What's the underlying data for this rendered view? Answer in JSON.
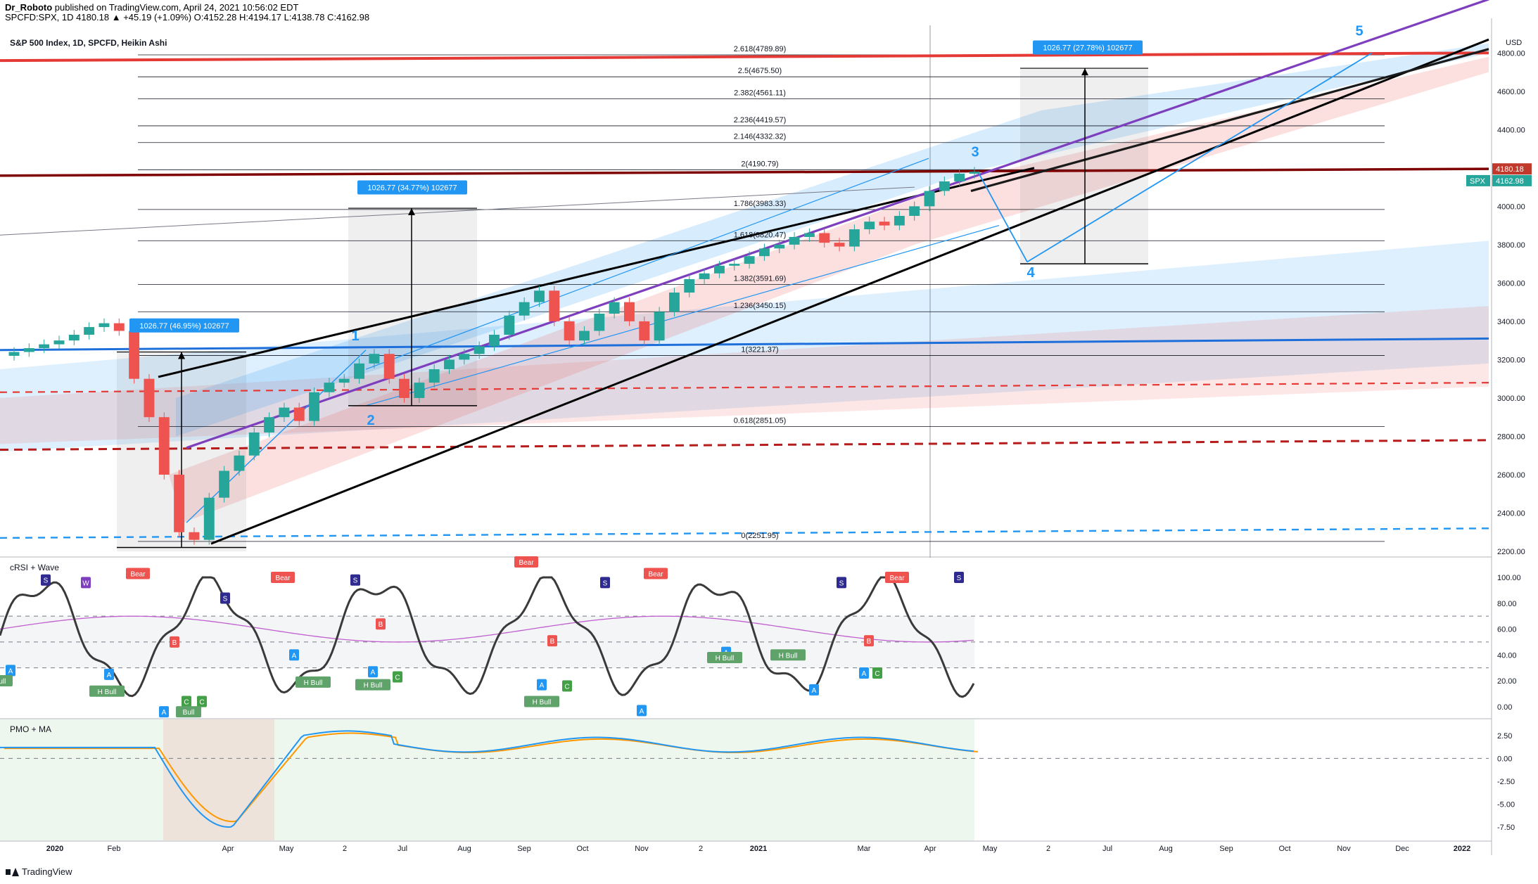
{
  "header": {
    "line1_user": "Dr_Roboto",
    "line1_rest": " published on TradingView.com, April 24, 2021 10:56:02 EDT",
    "line2": "SPCFD:SPX, 1D  4180.18  ▲ +45.19 (+1.09%)  O:4152.28  H:4194.17  L:4138.78  C:4162.98"
  },
  "footer": {
    "brand": "TradingView"
  },
  "chart_data": [
    {
      "type": "candlestick",
      "title": "S&P 500 Index, 1D, SPCFD, Heikin Ashi",
      "currency": "USD",
      "ylim": [
        2200,
        4900
      ],
      "y_ticks": [
        "4800.00",
        "4600.00",
        "4400.00",
        "4200.00",
        "4000.00",
        "3800.00",
        "3600.00",
        "3400.00",
        "3200.00",
        "3000.00",
        "2800.00",
        "2600.00",
        "2400.00",
        "2200.00"
      ],
      "x_ticks": [
        "2020",
        "Feb",
        "Apr",
        "May",
        "2",
        "Jul",
        "Aug",
        "Sep",
        "Oct",
        "Nov",
        "2",
        "2021",
        "Mar",
        "Apr",
        "May",
        "2",
        "Jul",
        "Aug",
        "Sep",
        "Oct",
        "Nov",
        "Dec",
        "2022"
      ],
      "price_labels": [
        {
          "text": "4180.18",
          "color": "#c0392b"
        },
        {
          "text": "4162.98",
          "color": "#26a69a",
          "tag": "SPX"
        }
      ],
      "series": [
        {
          "name": "S&P 500 (Heikin Ashi)",
          "color": "#26a69a",
          "values": [
            3240,
            3260,
            3280,
            3300,
            3330,
            3370,
            3390,
            3350,
            3100,
            2900,
            2600,
            2300,
            2260,
            2480,
            2620,
            2700,
            2820,
            2900,
            2950,
            2880,
            3030,
            3080,
            3100,
            3180,
            3230,
            3100,
            3000,
            3080,
            3150,
            3200,
            3230,
            3270,
            3330,
            3430,
            3500,
            3560,
            3400,
            3300,
            3350,
            3440,
            3500,
            3400,
            3300,
            3450,
            3550,
            3620,
            3650,
            3690,
            3700,
            3740,
            3780,
            3800,
            3840,
            3860,
            3810,
            3790,
            3880,
            3920,
            3900,
            3950,
            4000,
            4080,
            4130,
            4170,
            4180
          ]
        }
      ],
      "fib_levels": [
        {
          "ratio": "2.618",
          "price": 4789.89
        },
        {
          "ratio": "2.5",
          "price": 4675.5
        },
        {
          "ratio": "2.382",
          "price": 4561.11
        },
        {
          "ratio": "2.236",
          "price": 4419.57
        },
        {
          "ratio": "2.146",
          "price": 4332.32
        },
        {
          "ratio": "2",
          "price": 4190.79
        },
        {
          "ratio": "1.786",
          "price": 3983.33
        },
        {
          "ratio": "1.618",
          "price": 3820.47
        },
        {
          "ratio": "1.382",
          "price": 3591.69
        },
        {
          "ratio": "1.236",
          "price": 3450.15
        },
        {
          "ratio": "1",
          "price": 3221.37
        },
        {
          "ratio": "0.618",
          "price": 2851.05
        },
        {
          "ratio": "0",
          "price": 2251.95
        }
      ],
      "fib_label_texts": [
        "2.618(4789.89)",
        "2.5(4675.50)",
        "2.382(4561.11)",
        "2.236(4419.57)",
        "2.146(4332.32)",
        "2(4190.79)",
        "1.786(3983.33)",
        "1.618(3820.47)",
        "1.382(3591.69)",
        "1.236(3450.15)",
        "1(3221.37)",
        "0.618(2851.05)",
        "0(2251.95)"
      ],
      "measure_labels": [
        "1026.77 (46.95%) 102677",
        "1026.77 (34.77%) 102677",
        "1026.77 (27.78%) 102677"
      ],
      "wave_labels": [
        "1",
        "2",
        "3",
        "4",
        "5"
      ]
    },
    {
      "type": "line",
      "title": "cRSI + Wave",
      "ylim": [
        -5,
        112
      ],
      "y_ticks": [
        "100.00",
        "80.00",
        "60.00",
        "40.00",
        "20.00",
        "0.00"
      ],
      "signal_labels": {
        "bear": "Bear",
        "bull": "Bull",
        "hbull": "H Bull",
        "s": "S",
        "w": "W",
        "a": "A",
        "b": "B",
        "c": "C"
      }
    },
    {
      "type": "line",
      "title": "PMO + MA",
      "ylim": [
        -8.5,
        3.8
      ],
      "y_ticks": [
        "2.50",
        "0.00",
        "-2.50",
        "-5.00",
        "-7.50"
      ]
    }
  ],
  "colors": {
    "up": "#26a69a",
    "down": "#ef5350",
    "blue_line": "#2196f3",
    "purple": "#7e3fbf",
    "red_res": "#d32f2f",
    "label_bg": "#2196f3"
  }
}
